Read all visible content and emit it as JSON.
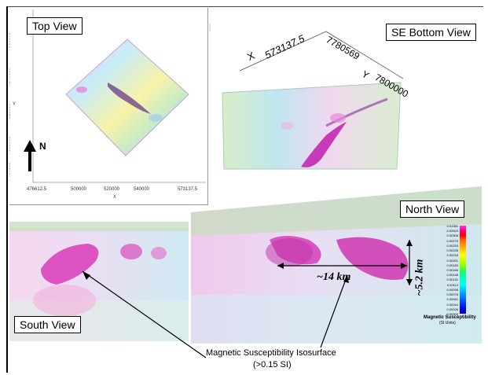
{
  "views": {
    "top": "Top View",
    "se_bottom": "SE Bottom View",
    "south": "South View",
    "north": "North View"
  },
  "top_view_axes": {
    "x_ticks": [
      "476612.5",
      "500000",
      "520000",
      "540000",
      "573137.5"
    ],
    "x_label": "X",
    "y_ticks": [
      "7860000",
      "7840000",
      "7820000",
      "7800000",
      "7780569"
    ],
    "y_label": "Y"
  },
  "north_arrow": "N",
  "se_axes": {
    "x_label": "X",
    "x_value": "573137.5",
    "y_values": [
      "7780569",
      "7800000"
    ],
    "y_label": "Y"
  },
  "measurements": {
    "length": "~14 km",
    "depth": "~5.2 km"
  },
  "isosurface_label": {
    "line1": "Magnetic Susceptibility Isosurface",
    "line2": "(>0.15 SI)"
  },
  "colorbar": {
    "title": "Magnetic Susceptibility",
    "units": "(SI Units)",
    "ticks": [
      "0.01381",
      "0.00523",
      "0.00306",
      "0.00270",
      "0.00253",
      "0.00235",
      "0.00218",
      "0.00201",
      "0.00183",
      "0.00166",
      "0.00148",
      "0.00131",
      "0.00113",
      "0.00096",
      "0.00078",
      "0.00061",
      "0.00044",
      "0.00026",
      "0.00009"
    ],
    "colors": [
      "#ff33ff",
      "#ff0066",
      "#ff0000",
      "#ff6600",
      "#ff9900",
      "#ffcc00",
      "#ffff00",
      "#ccff00",
      "#99ff00",
      "#33ff33",
      "#00ff99",
      "#00ffcc",
      "#00ffff",
      "#00ccff",
      "#0099ff",
      "#0066ff",
      "#0033ff",
      "#0000ee",
      "#0000aa"
    ]
  },
  "colors": {
    "anomaly": "#d63fb8",
    "background_field": "#b8e6f0"
  }
}
